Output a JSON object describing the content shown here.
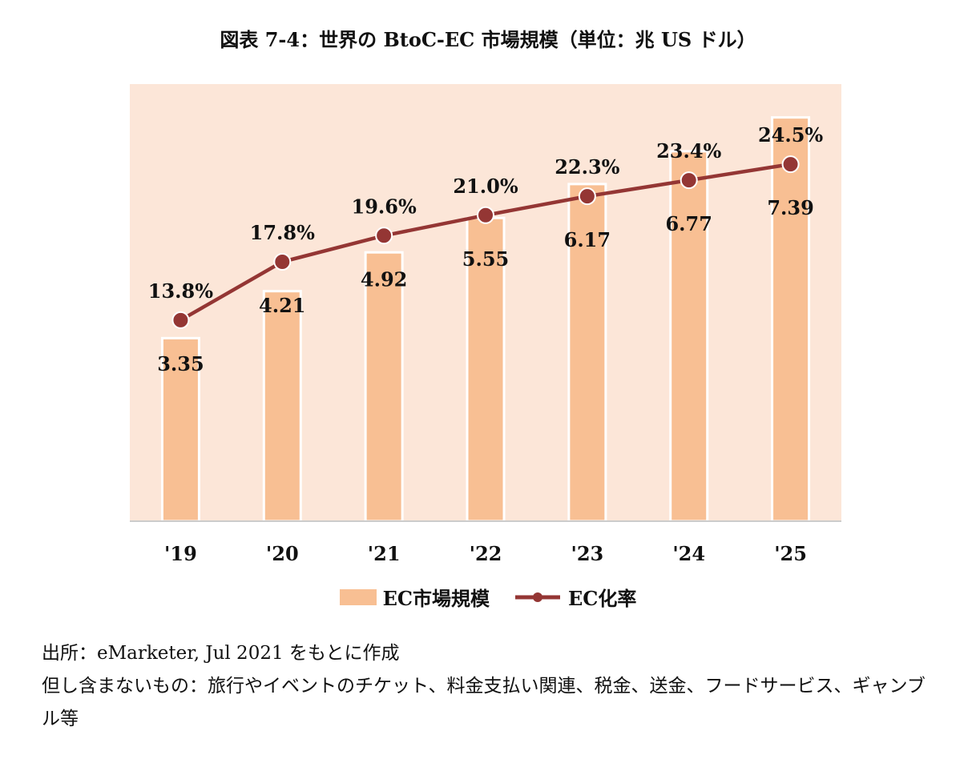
{
  "title": "図表 7-4：世界の BtoC-EC 市場規模（単位：兆 US ドル）",
  "colors": {
    "plot_bg": "#fce6d8",
    "bar_fill": "#f8bf93",
    "bar_edge": "#ffffff",
    "line": "#943634",
    "marker": "#943634",
    "axis": "#cccccc"
  },
  "chart_data": {
    "type": "bar+line",
    "categories": [
      "'19",
      "'20",
      "'21",
      "'22",
      "'23",
      "'24",
      "'25"
    ],
    "series": [
      {
        "name": "EC市場規模",
        "type": "bar",
        "values": [
          3.35,
          4.21,
          4.92,
          5.55,
          6.17,
          6.77,
          7.39
        ],
        "labels": [
          "3.35",
          "4.21",
          "4.92",
          "5.55",
          "6.17",
          "6.77",
          "7.39"
        ]
      },
      {
        "name": "EC化率",
        "type": "line",
        "values": [
          13.8,
          17.8,
          19.6,
          21.0,
          22.3,
          23.4,
          24.5
        ],
        "labels": [
          "13.8%",
          "17.8%",
          "19.6%",
          "21.0%",
          "22.3%",
          "23.4%",
          "24.5%"
        ]
      }
    ],
    "ylim_bar": [
      0,
      8
    ],
    "ylim_line": [
      0,
      30
    ],
    "grid": false,
    "legend_position": "bottom"
  },
  "legend": {
    "bar_label": "EC市場規模",
    "line_label": "EC化率"
  },
  "notes": {
    "source": "出所：eMarketer, Jul 2021 をもとに作成",
    "exclusions": "但し含まないもの：旅行やイベントのチケット、料金支払い関連、税金、送金、フードサービス、ギャンブル等"
  }
}
